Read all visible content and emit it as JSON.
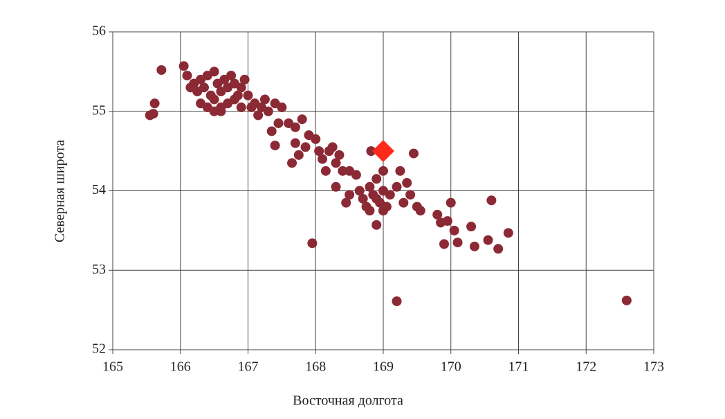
{
  "chart_data": {
    "type": "scatter",
    "xlabel": "Восточная долгота",
    "ylabel": "Северная широта",
    "xlim": [
      165,
      173
    ],
    "ylim": [
      52,
      56
    ],
    "xticks": [
      165,
      166,
      167,
      168,
      169,
      170,
      171,
      172,
      173
    ],
    "yticks": [
      52,
      53,
      54,
      55,
      56
    ],
    "grid": true,
    "series": [
      {
        "color": "#8b2a35",
        "marker": "circle",
        "x": [
          165.6,
          165.55,
          165.62,
          165.72,
          166.05,
          166.1,
          166.15,
          166.2,
          166.25,
          166.3,
          166.35,
          166.4,
          166.45,
          166.5,
          166.55,
          166.6,
          166.65,
          166.7,
          166.75,
          166.8,
          166.85,
          166.9,
          166.95,
          167.0,
          166.3,
          166.4,
          166.5,
          166.6,
          166.7,
          166.8,
          166.9,
          166.5,
          166.6,
          167.1,
          167.2,
          167.25,
          167.3,
          167.15,
          167.05,
          167.4,
          167.5,
          167.35,
          167.45,
          167.6,
          167.7,
          167.8,
          167.9,
          167.85,
          168.0,
          167.75,
          167.65,
          168.05,
          167.7,
          168.1,
          168.2,
          168.25,
          168.3,
          168.15,
          168.35,
          168.4,
          168.5,
          168.6,
          168.65,
          168.5,
          168.3,
          168.45,
          168.7,
          168.75,
          168.8,
          168.85,
          168.9,
          168.95,
          169.0,
          169.05,
          169.1,
          168.8,
          168.9,
          169.0,
          169.2,
          169.3,
          169.35,
          169.4,
          169.5,
          169.55,
          169.25,
          169.45,
          168.9,
          169.0,
          169.8,
          169.85,
          169.95,
          170.0,
          170.05,
          170.1,
          170.3,
          170.35,
          170.55,
          170.6,
          170.7,
          170.85,
          169.9,
          167.95,
          169.2,
          172.6,
          168.82,
          167.4
        ],
        "values": [
          54.97,
          54.95,
          55.1,
          55.52,
          55.57,
          55.45,
          55.3,
          55.35,
          55.25,
          55.4,
          55.3,
          55.45,
          55.2,
          55.5,
          55.35,
          55.25,
          55.4,
          55.3,
          55.45,
          55.35,
          55.2,
          55.3,
          55.4,
          55.2,
          55.1,
          55.05,
          55.15,
          55.0,
          55.1,
          55.15,
          55.05,
          55.0,
          55.05,
          55.1,
          55.05,
          55.15,
          55.0,
          54.95,
          55.05,
          55.1,
          55.05,
          54.75,
          54.85,
          54.85,
          54.8,
          54.9,
          54.7,
          54.55,
          54.65,
          54.45,
          54.35,
          54.5,
          54.6,
          54.4,
          54.5,
          54.55,
          54.35,
          54.25,
          54.45,
          54.25,
          54.25,
          54.2,
          54.0,
          53.95,
          54.05,
          53.85,
          53.9,
          53.8,
          54.05,
          53.95,
          54.15,
          53.85,
          54.0,
          53.8,
          53.95,
          53.75,
          53.9,
          54.25,
          54.05,
          53.85,
          54.1,
          53.95,
          53.8,
          53.75,
          54.25,
          54.47,
          53.57,
          53.75,
          53.7,
          53.6,
          53.62,
          53.85,
          53.5,
          53.35,
          53.55,
          53.3,
          53.38,
          53.88,
          53.27,
          53.47,
          53.33,
          53.34,
          52.61,
          52.62,
          54.5,
          54.57
        ]
      },
      {
        "color": "#ff2a1a",
        "marker": "diamond",
        "x": [
          169.0
        ],
        "values": [
          54.5
        ]
      }
    ]
  }
}
